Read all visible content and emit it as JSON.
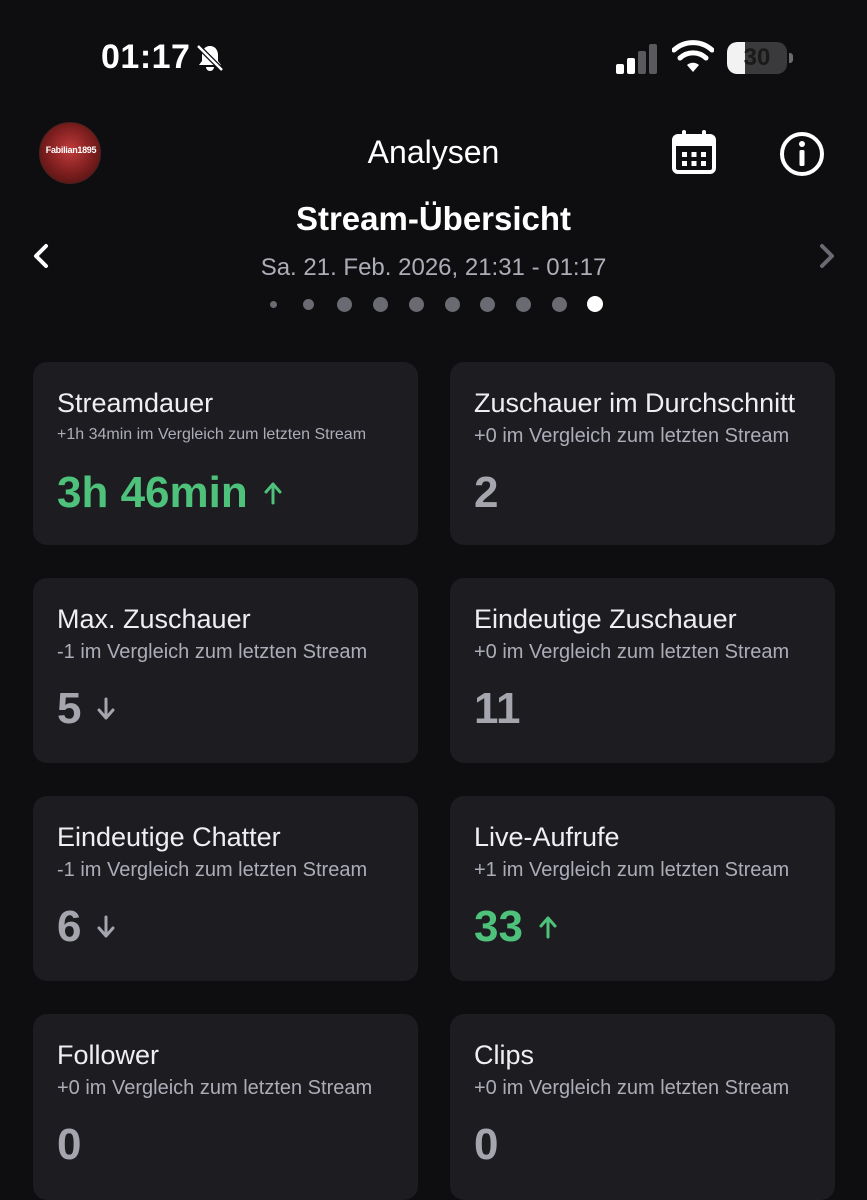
{
  "status_bar": {
    "time": "01:17",
    "battery": "30",
    "battery_level": 0.3
  },
  "header": {
    "title": "Analysen",
    "avatar_text": "Fabilian1895"
  },
  "section": {
    "title": "Stream-Übersicht",
    "subtitle": "Sa. 21. Feb. 2026, 21:31 - 01:17",
    "page_count": 10,
    "active_page": 10
  },
  "cards": [
    {
      "title": "Streamdauer",
      "comparison": "+1h 34min im Vergleich zum letzten Stream",
      "value": "3h 46min",
      "trend": "up"
    },
    {
      "title": "Zuschauer im Durchschnitt",
      "comparison": "+0 im Vergleich zum letzten Stream",
      "value": "2",
      "trend": "none"
    },
    {
      "title": "Max. Zuschauer",
      "comparison": "-1 im Vergleich zum letzten Stream",
      "value": "5",
      "trend": "down"
    },
    {
      "title": "Eindeutige Zuschauer",
      "comparison": "+0 im Vergleich zum letzten Stream",
      "value": "11",
      "trend": "none"
    },
    {
      "title": "Eindeutige Chatter",
      "comparison": "-1 im Vergleich zum letzten Stream",
      "value": "6",
      "trend": "down"
    },
    {
      "title": "Live-Aufrufe",
      "comparison": "+1 im Vergleich zum letzten Stream",
      "value": "33",
      "trend": "up"
    },
    {
      "title": "Follower",
      "comparison": "+0 im Vergleich zum letzten Stream",
      "value": "0",
      "trend": "none"
    },
    {
      "title": "Clips",
      "comparison": "+0 im Vergleich zum letzten Stream",
      "value": "0",
      "trend": "none"
    }
  ],
  "colors": {
    "background": "#0e0e10",
    "card": "#1c1c21",
    "up": "#4ec27a",
    "neutral": "#a5a5ae"
  }
}
